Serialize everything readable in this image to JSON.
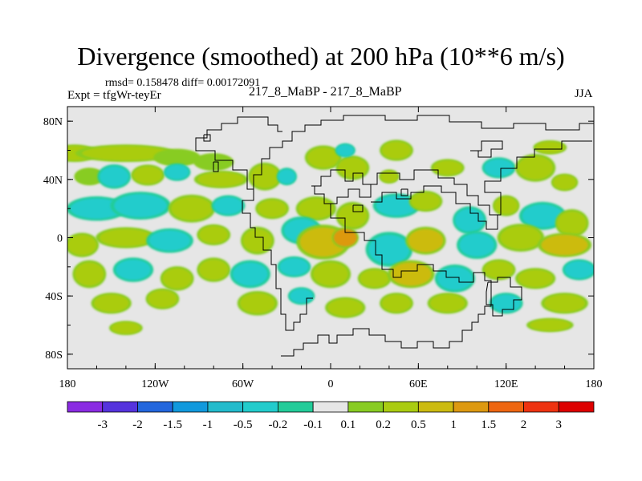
{
  "title": "Divergence (smoothed) at 200 hPa (10**6 m/s)",
  "stats": "rmsd= 0.158478 diff= 0.00172091",
  "expt": "Expt = tfgWr-teyEr",
  "case_label": "217_8_MaBP - 217_8_MaBP",
  "season": "JJA",
  "chart_data": {
    "type": "heatmap",
    "title": "Divergence (smoothed) at 200 hPa (10**6 m/s)",
    "xlabel": "",
    "ylabel": "",
    "xlim": [
      -180,
      180
    ],
    "ylim": [
      -90,
      90
    ],
    "x_ticks": [
      {
        "value": -180,
        "label": "180"
      },
      {
        "value": -120,
        "label": "120W"
      },
      {
        "value": -60,
        "label": "60W"
      },
      {
        "value": 0,
        "label": "0"
      },
      {
        "value": 60,
        "label": "60E"
      },
      {
        "value": 120,
        "label": "120E"
      },
      {
        "value": 180,
        "label": "180"
      }
    ],
    "y_ticks": [
      {
        "value": 80,
        "label": "80N"
      },
      {
        "value": 40,
        "label": "40N"
      },
      {
        "value": 0,
        "label": "0"
      },
      {
        "value": -40,
        "label": "40S"
      },
      {
        "value": -80,
        "label": "80S"
      }
    ],
    "colorbar": {
      "boundaries": [
        "-3",
        "-2",
        "-1.5",
        "-1",
        "-0.5",
        "-0.2",
        "-0.1",
        "0.1",
        "0.2",
        "0.5",
        "1",
        "1.5",
        "2",
        "3"
      ],
      "colors": [
        "#8a2be2",
        "#5533dd",
        "#2266dd",
        "#1199dd",
        "#22bbcc",
        "#22cccc",
        "#22cc99",
        "#e6e6e6",
        "#88cc22",
        "#aacc11",
        "#ccbb11",
        "#dd9911",
        "#ee6611",
        "#ee3311",
        "#dd0000"
      ]
    },
    "features": [
      {
        "lon": -175,
        "lat": 58,
        "w": 14,
        "h": 5,
        "level": 9
      },
      {
        "lon": -140,
        "lat": 58,
        "w": 30,
        "h": 5,
        "level": 9
      },
      {
        "lon": -105,
        "lat": 55,
        "w": 14,
        "h": 5,
        "level": 8
      },
      {
        "lon": -80,
        "lat": 52,
        "w": 12,
        "h": 5,
        "level": 8
      },
      {
        "lon": -165,
        "lat": 42,
        "w": 9,
        "h": 5,
        "level": 8
      },
      {
        "lon": -148,
        "lat": 42,
        "w": 10,
        "h": 7,
        "level": 5
      },
      {
        "lon": -125,
        "lat": 43,
        "w": 10,
        "h": 6,
        "level": 9
      },
      {
        "lon": -105,
        "lat": 45,
        "w": 8,
        "h": 5,
        "level": 5
      },
      {
        "lon": -75,
        "lat": 40,
        "w": 16,
        "h": 5,
        "level": 9
      },
      {
        "lon": -45,
        "lat": 42,
        "w": 10,
        "h": 8,
        "level": 9
      },
      {
        "lon": -30,
        "lat": 42,
        "w": 6,
        "h": 5,
        "level": 5
      },
      {
        "lon": -5,
        "lat": 55,
        "w": 11,
        "h": 7,
        "level": 9
      },
      {
        "lon": 15,
        "lat": 48,
        "w": 10,
        "h": 7,
        "level": 9
      },
      {
        "lon": 10,
        "lat": 60,
        "w": 6,
        "h": 4,
        "level": 5
      },
      {
        "lon": 40,
        "lat": 42,
        "w": 6,
        "h": 4,
        "level": 9
      },
      {
        "lon": 45,
        "lat": 60,
        "w": 10,
        "h": 6,
        "level": 9
      },
      {
        "lon": 80,
        "lat": 48,
        "w": 10,
        "h": 5,
        "level": 9
      },
      {
        "lon": 115,
        "lat": 48,
        "w": 10,
        "h": 6,
        "level": 5
      },
      {
        "lon": 140,
        "lat": 48,
        "w": 12,
        "h": 8,
        "level": 9
      },
      {
        "lon": 160,
        "lat": 38,
        "w": 8,
        "h": 5,
        "level": 9
      },
      {
        "lon": 150,
        "lat": 62,
        "w": 10,
        "h": 4,
        "level": 9
      },
      {
        "lon": -160,
        "lat": 20,
        "w": 18,
        "h": 7,
        "level": 5
      },
      {
        "lon": -130,
        "lat": 22,
        "w": 18,
        "h": 8,
        "level": 5
      },
      {
        "lon": -95,
        "lat": 20,
        "w": 14,
        "h": 8,
        "level": 9
      },
      {
        "lon": -70,
        "lat": 22,
        "w": 10,
        "h": 6,
        "level": 5
      },
      {
        "lon": -40,
        "lat": 20,
        "w": 10,
        "h": 6,
        "level": 9
      },
      {
        "lon": -10,
        "lat": 20,
        "w": 12,
        "h": 7,
        "level": 9
      },
      {
        "lon": 15,
        "lat": 15,
        "w": 10,
        "h": 8,
        "level": 9
      },
      {
        "lon": 45,
        "lat": 22,
        "w": 14,
        "h": 7,
        "level": 5
      },
      {
        "lon": 65,
        "lat": 25,
        "w": 10,
        "h": 6,
        "level": 9
      },
      {
        "lon": 95,
        "lat": 12,
        "w": 10,
        "h": 8,
        "level": 5
      },
      {
        "lon": 120,
        "lat": 22,
        "w": 8,
        "h": 6,
        "level": 9
      },
      {
        "lon": 145,
        "lat": 15,
        "w": 14,
        "h": 8,
        "level": 5
      },
      {
        "lon": 165,
        "lat": 10,
        "w": 10,
        "h": 8,
        "level": 9
      },
      {
        "lon": -170,
        "lat": -5,
        "w": 10,
        "h": 7,
        "level": 9
      },
      {
        "lon": -140,
        "lat": 0,
        "w": 18,
        "h": 6,
        "level": 9
      },
      {
        "lon": -110,
        "lat": -2,
        "w": 14,
        "h": 7,
        "level": 5
      },
      {
        "lon": -80,
        "lat": 2,
        "w": 10,
        "h": 6,
        "level": 9
      },
      {
        "lon": -50,
        "lat": -2,
        "w": 10,
        "h": 8,
        "level": 9
      },
      {
        "lon": -20,
        "lat": 5,
        "w": 12,
        "h": 8,
        "level": 5
      },
      {
        "lon": -5,
        "lat": -3,
        "w": 16,
        "h": 10,
        "level": 10
      },
      {
        "lon": 10,
        "lat": 0,
        "w": 8,
        "h": 6,
        "level": 11
      },
      {
        "lon": 40,
        "lat": -8,
        "w": 14,
        "h": 10,
        "level": 5
      },
      {
        "lon": 65,
        "lat": -2,
        "w": 12,
        "h": 8,
        "level": 10
      },
      {
        "lon": 100,
        "lat": -5,
        "w": 12,
        "h": 8,
        "level": 5
      },
      {
        "lon": 130,
        "lat": 0,
        "w": 14,
        "h": 8,
        "level": 9
      },
      {
        "lon": 160,
        "lat": -5,
        "w": 16,
        "h": 7,
        "level": 10
      },
      {
        "lon": -165,
        "lat": -25,
        "w": 10,
        "h": 8,
        "level": 9
      },
      {
        "lon": -135,
        "lat": -22,
        "w": 12,
        "h": 7,
        "level": 5
      },
      {
        "lon": -105,
        "lat": -28,
        "w": 10,
        "h": 7,
        "level": 9
      },
      {
        "lon": -80,
        "lat": -22,
        "w": 10,
        "h": 7,
        "level": 9
      },
      {
        "lon": -55,
        "lat": -25,
        "w": 12,
        "h": 8,
        "level": 5
      },
      {
        "lon": -25,
        "lat": -20,
        "w": 10,
        "h": 6,
        "level": 5
      },
      {
        "lon": 0,
        "lat": -25,
        "w": 12,
        "h": 8,
        "level": 9
      },
      {
        "lon": 30,
        "lat": -28,
        "w": 10,
        "h": 6,
        "level": 9
      },
      {
        "lon": 55,
        "lat": -25,
        "w": 14,
        "h": 8,
        "level": 10
      },
      {
        "lon": 85,
        "lat": -28,
        "w": 12,
        "h": 8,
        "level": 5
      },
      {
        "lon": 115,
        "lat": -22,
        "w": 10,
        "h": 6,
        "level": 9
      },
      {
        "lon": 140,
        "lat": -28,
        "w": 12,
        "h": 6,
        "level": 9
      },
      {
        "lon": 170,
        "lat": -22,
        "w": 10,
        "h": 6,
        "level": 5
      },
      {
        "lon": -150,
        "lat": -45,
        "w": 12,
        "h": 6,
        "level": 9
      },
      {
        "lon": -115,
        "lat": -42,
        "w": 10,
        "h": 6,
        "level": 9
      },
      {
        "lon": -50,
        "lat": -45,
        "w": 12,
        "h": 7,
        "level": 9
      },
      {
        "lon": -20,
        "lat": -40,
        "w": 8,
        "h": 5,
        "level": 5
      },
      {
        "lon": 10,
        "lat": -48,
        "w": 12,
        "h": 6,
        "level": 9
      },
      {
        "lon": 45,
        "lat": -45,
        "w": 10,
        "h": 6,
        "level": 9
      },
      {
        "lon": 80,
        "lat": -45,
        "w": 12,
        "h": 6,
        "level": 9
      },
      {
        "lon": 120,
        "lat": -45,
        "w": 10,
        "h": 6,
        "level": 5
      },
      {
        "lon": 160,
        "lat": -45,
        "w": 14,
        "h": 6,
        "level": 9
      },
      {
        "lon": -140,
        "lat": -62,
        "w": 10,
        "h": 4,
        "level": 9
      },
      {
        "lon": 150,
        "lat": -60,
        "w": 14,
        "h": 4,
        "level": 9
      }
    ]
  }
}
